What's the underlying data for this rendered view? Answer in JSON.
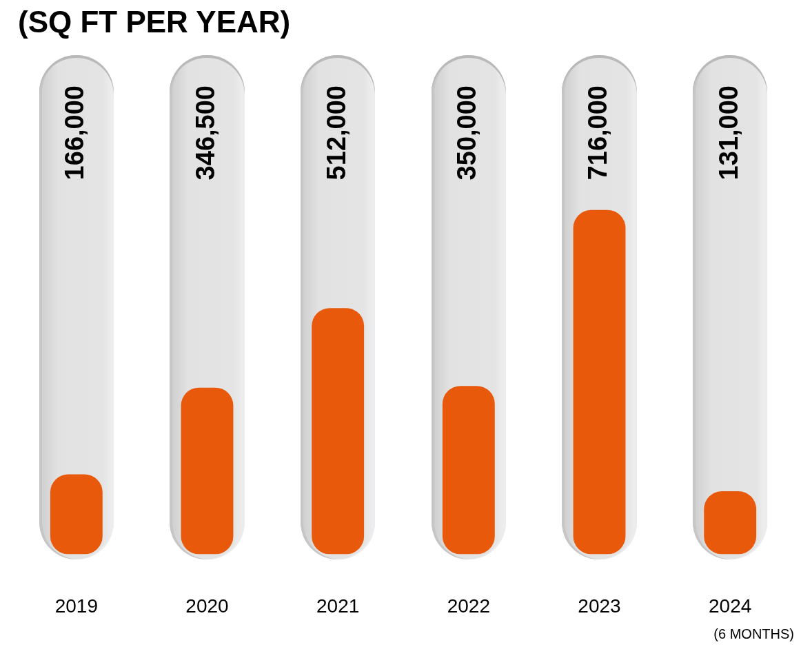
{
  "chart_data": {
    "type": "bar",
    "title": "(SQ FT PER YEAR)",
    "categories": [
      "2019",
      "2020",
      "2021",
      "2022",
      "2023",
      "2024"
    ],
    "values": [
      166000,
      346500,
      512000,
      350000,
      716000,
      131000
    ],
    "value_labels": [
      "166,000",
      "346,500",
      "512,000",
      "350,000",
      "716,000",
      "131,000"
    ],
    "color": "#e8590c",
    "annotations": [
      "(6 MONTHS)"
    ]
  }
}
